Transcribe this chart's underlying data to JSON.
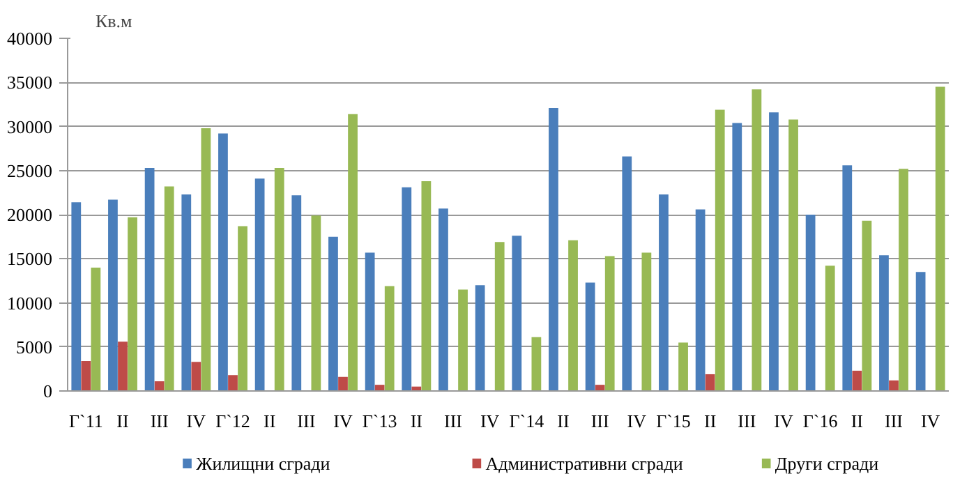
{
  "chart_data": {
    "type": "bar",
    "ylabel": "Кв.м",
    "categories": [
      "Г`11",
      "II",
      "III",
      "IV",
      "Г`12",
      "II",
      "III",
      "IV",
      "Г`13",
      "II",
      "III",
      "IV",
      "Г`14",
      "II",
      "III",
      "IV",
      "Г`15",
      "II",
      "III",
      "IV",
      "Г`16",
      "II",
      "III",
      "IV"
    ],
    "series": [
      {
        "name": "Жилищни сгради",
        "color": "#4a7ebb",
        "values": [
          21400,
          21700,
          25300,
          22300,
          29200,
          24100,
          22200,
          17500,
          15700,
          23100,
          20700,
          12000,
          17600,
          32100,
          12300,
          26600,
          22300,
          20600,
          30400,
          31600,
          20000,
          25600,
          15400,
          13500
        ]
      },
      {
        "name": "Административни сгради",
        "color": "#be4b48",
        "values": [
          3400,
          5600,
          1100,
          3300,
          1800,
          0,
          0,
          1600,
          700,
          500,
          0,
          0,
          0,
          0,
          700,
          0,
          0,
          1900,
          0,
          0,
          0,
          2300,
          1200,
          0
        ]
      },
      {
        "name": "Други сгради",
        "color": "#98b954",
        "values": [
          14000,
          19700,
          23200,
          29800,
          18700,
          25300,
          19900,
          31400,
          11900,
          23800,
          11500,
          16900,
          6100,
          17100,
          15300,
          15700,
          5500,
          31900,
          34200,
          30800,
          14200,
          19300,
          25200,
          34500
        ]
      }
    ],
    "ylim": [
      0,
      40000
    ],
    "yticks": [
      0,
      5000,
      10000,
      15000,
      20000,
      25000,
      30000,
      35000,
      40000
    ],
    "grid": "y",
    "legend": "bottom"
  }
}
